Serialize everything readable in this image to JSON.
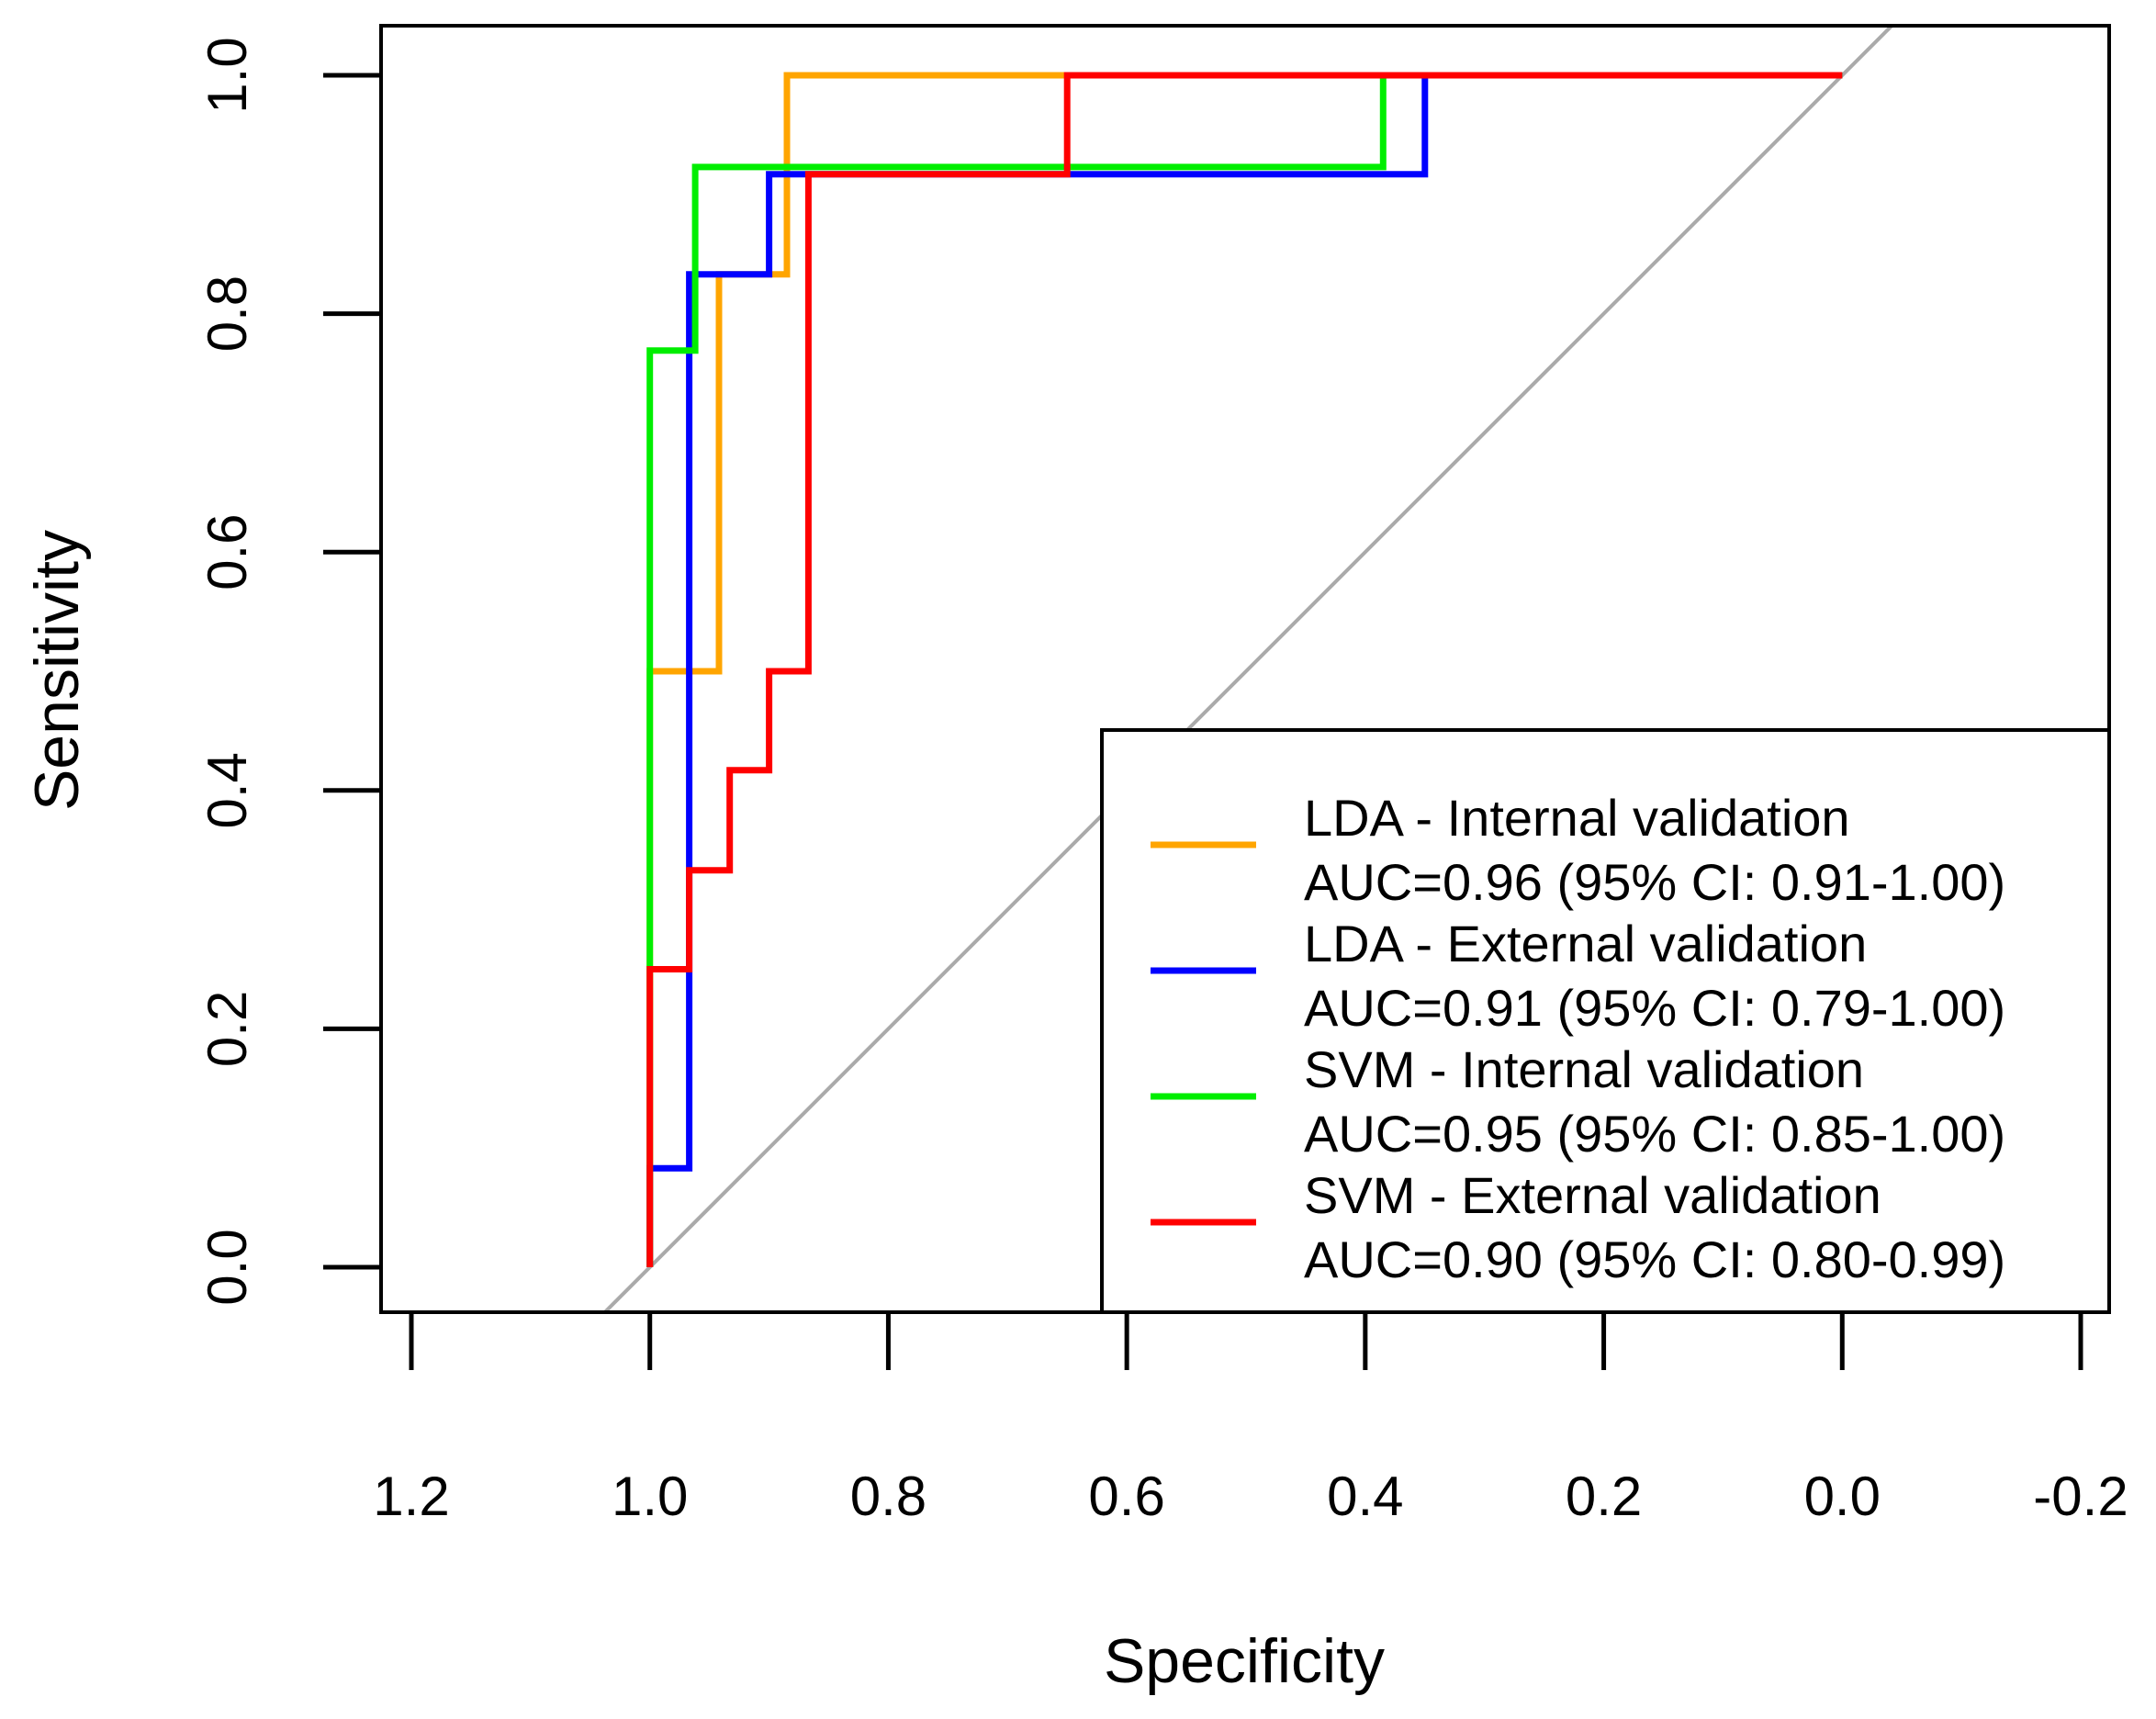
{
  "chart_data": {
    "type": "line",
    "subtype": "roc",
    "xlabel": "Specificity",
    "ylabel": "Sensitivity",
    "xlim": [
      1.2,
      -0.2
    ],
    "ylim": [
      0.0,
      1.0
    ],
    "x_ticks": [
      1.2,
      1.0,
      0.8,
      0.6,
      0.4,
      0.2,
      0.0,
      -0.2
    ],
    "x_tick_labels": [
      "1.2",
      "1.0",
      "0.8",
      "0.6",
      "0.4",
      "0.2",
      "0.0",
      "-0.2"
    ],
    "y_ticks": [
      0.0,
      0.2,
      0.4,
      0.6,
      0.8,
      1.0
    ],
    "y_tick_labels": [
      "0.0",
      "0.2",
      "0.4",
      "0.6",
      "0.8",
      "1.0"
    ],
    "grid": false,
    "legend_position": "bottom-right",
    "reference_line": {
      "from": [
        1.0,
        0.0
      ],
      "to": [
        0.0,
        1.0
      ],
      "color": "#aaaaaa"
    },
    "series": [
      {
        "name": "LDA - Internal validation",
        "auc_label": "AUC=0.96 (95% CI: 0.91-1.00)",
        "color": "#ffa500",
        "points": [
          [
            1.0,
            0.0
          ],
          [
            1.0,
            0.5
          ],
          [
            0.942,
            0.5
          ],
          [
            0.942,
            0.833
          ],
          [
            0.885,
            0.833
          ],
          [
            0.885,
            1.0
          ],
          [
            0.654,
            1.0
          ],
          [
            0.0,
            1.0
          ]
        ]
      },
      {
        "name": "LDA - External validation",
        "auc_label": "AUC=0.91 (95% CI: 0.79-1.00)",
        "color": "#0000ff",
        "points": [
          [
            1.0,
            0.0
          ],
          [
            1.0,
            0.083
          ],
          [
            0.967,
            0.083
          ],
          [
            0.967,
            0.833
          ],
          [
            0.9,
            0.833
          ],
          [
            0.9,
            0.917
          ],
          [
            0.35,
            0.917
          ],
          [
            0.35,
            1.0
          ],
          [
            0.0,
            1.0
          ]
        ]
      },
      {
        "name": "SVM - Internal validation",
        "auc_label": "AUC=0.95 (95% CI: 0.85-1.00)",
        "color": "#00ee00",
        "points": [
          [
            1.0,
            0.0
          ],
          [
            1.0,
            0.769
          ],
          [
            0.962,
            0.769
          ],
          [
            0.962,
            0.923
          ],
          [
            0.385,
            0.923
          ],
          [
            0.385,
            1.0
          ],
          [
            0.0,
            1.0
          ]
        ]
      },
      {
        "name": "SVM - External validation",
        "auc_label": "AUC=0.90 (95% CI: 0.80-0.99)",
        "color": "#ff0000",
        "points": [
          [
            1.0,
            0.0
          ],
          [
            1.0,
            0.25
          ],
          [
            0.967,
            0.25
          ],
          [
            0.967,
            0.333
          ],
          [
            0.933,
            0.333
          ],
          [
            0.933,
            0.417
          ],
          [
            0.9,
            0.417
          ],
          [
            0.9,
            0.5
          ],
          [
            0.867,
            0.5
          ],
          [
            0.867,
            0.917
          ],
          [
            0.65,
            0.917
          ],
          [
            0.65,
            1.0
          ],
          [
            0.0,
            1.0
          ]
        ]
      }
    ]
  }
}
